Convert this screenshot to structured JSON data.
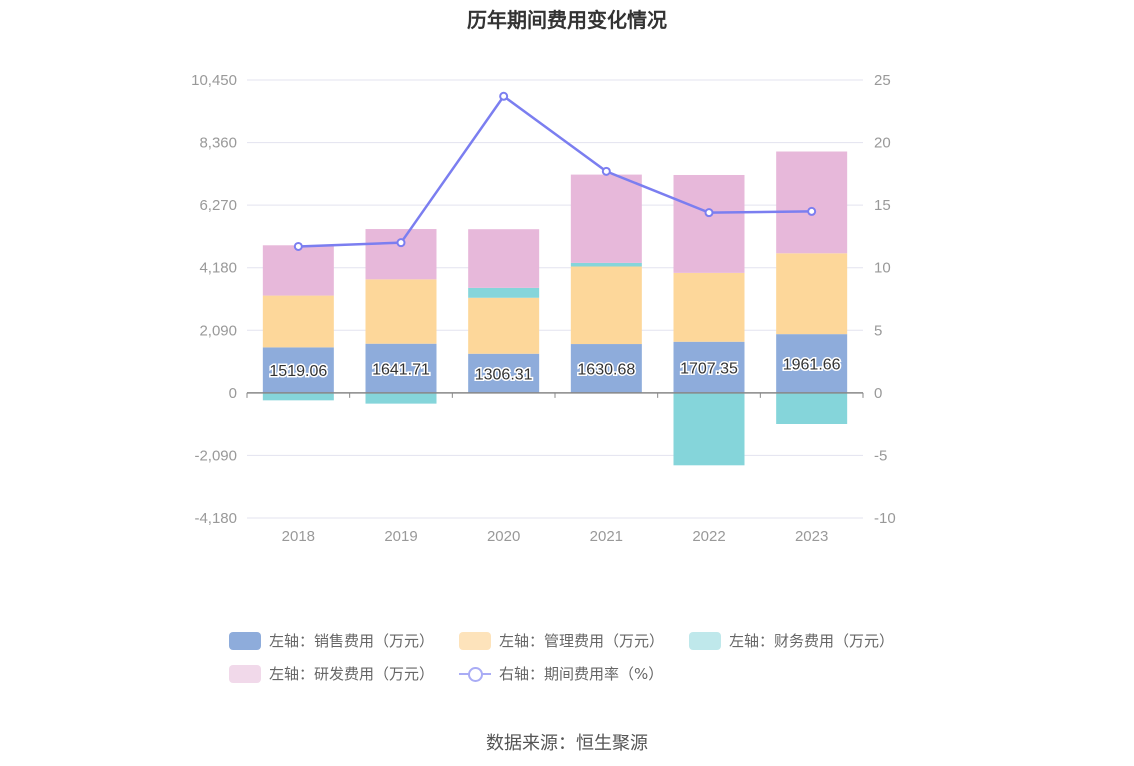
{
  "title": "历年期间费用变化情况",
  "source": "数据来源：恒生聚源",
  "colors": {
    "sales": "#8eacdb",
    "admin": "#fdd79a",
    "finance": "#85d5da",
    "rnd": "#e7b8da",
    "rate": "#7b7ef0",
    "grid": "#e3e3ef",
    "axis_text": "#999999"
  },
  "legend": [
    {
      "label": "左轴：销售费用（万元）",
      "color": "#8eacdb",
      "kind": "bar"
    },
    {
      "label": "左轴：管理费用（万元）",
      "color": "#fde3bb",
      "kind": "bar"
    },
    {
      "label": "左轴：财务费用（万元）",
      "color": "#bfe8eb",
      "kind": "bar"
    },
    {
      "label": "左轴：研发费用（万元）",
      "color": "#f1d9ea",
      "kind": "bar"
    },
    {
      "label": "右轴：期间费用率（%）",
      "color": "#a9acf5",
      "kind": "line"
    }
  ],
  "chart_data": {
    "type": "bar",
    "categories": [
      "2018",
      "2019",
      "2020",
      "2021",
      "2022",
      "2023"
    ],
    "series": [
      {
        "name": "左轴：销售费用（万元）",
        "axis": "left",
        "values": [
          1519.06,
          1641.71,
          1306.31,
          1630.68,
          1707.35,
          1961.66
        ]
      },
      {
        "name": "左轴：管理费用（万元）",
        "axis": "left",
        "values": [
          1730,
          2150,
          1870,
          2590,
          2300,
          2700
        ]
      },
      {
        "name": "左轴：财务费用（万元）",
        "axis": "left",
        "values": [
          -250,
          -360,
          330,
          120,
          -2420,
          -1040
        ]
      },
      {
        "name": "左轴：研发费用（万元）",
        "axis": "left",
        "values": [
          1680,
          1680,
          1960,
          2950,
          3270,
          3400
        ]
      },
      {
        "name": "右轴：期间费用率（%）",
        "axis": "right",
        "type": "line",
        "values": [
          11.7,
          12.0,
          23.7,
          17.7,
          14.4,
          14.5
        ]
      }
    ],
    "data_labels": [
      "1519.06",
      "1641.71",
      "1306.31",
      "1630.68",
      "1707.35",
      "1961.66"
    ],
    "left_axis": {
      "ticks": [
        "10,450",
        "8,360",
        "6,270",
        "4,180",
        "2,090",
        "0",
        "-2,090",
        "-4,180"
      ],
      "ylim": [
        -4180,
        10450
      ]
    },
    "right_axis": {
      "ticks": [
        "25",
        "20",
        "15",
        "10",
        "5",
        "0",
        "-5",
        "-10"
      ],
      "ylim": [
        -10,
        25
      ]
    },
    "grid": true,
    "legend_position": "bottom"
  }
}
